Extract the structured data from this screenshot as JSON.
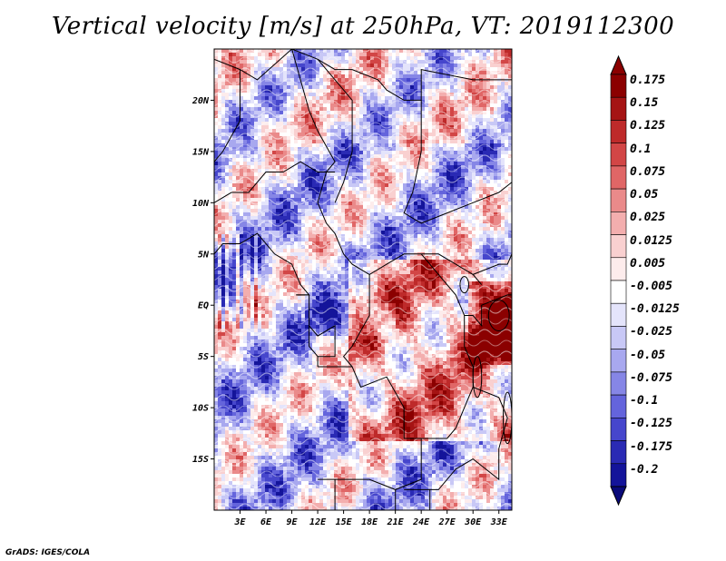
{
  "title": "Vertical velocity [m/s] at 250hPa, VT: 2019112300",
  "credit": "GrADS: IGES/COLA",
  "map": {
    "lon_range": [
      0,
      34.5
    ],
    "lat_range": [
      -20,
      25
    ],
    "lat_ticks": [
      {
        "value": 20,
        "label": "20N"
      },
      {
        "value": 15,
        "label": "15N"
      },
      {
        "value": 10,
        "label": "10N"
      },
      {
        "value": 5,
        "label": "5N"
      },
      {
        "value": 0,
        "label": "EQ"
      },
      {
        "value": -5,
        "label": "5S"
      },
      {
        "value": -10,
        "label": "10S"
      },
      {
        "value": -15,
        "label": "15S"
      }
    ],
    "lon_ticks": [
      {
        "value": 3,
        "label": "3E"
      },
      {
        "value": 6,
        "label": "6E"
      },
      {
        "value": 9,
        "label": "9E"
      },
      {
        "value": 12,
        "label": "12E"
      },
      {
        "value": 15,
        "label": "15E"
      },
      {
        "value": 18,
        "label": "18E"
      },
      {
        "value": 21,
        "label": "21E"
      },
      {
        "value": 24,
        "label": "24E"
      },
      {
        "value": 27,
        "label": "27E"
      },
      {
        "value": 30,
        "label": "30E"
      },
      {
        "value": 33,
        "label": "33E"
      }
    ]
  },
  "colorbar": {
    "levels": [
      {
        "label": "0.175",
        "color": "#8b0000"
      },
      {
        "label": "0.15",
        "color": "#a51414"
      },
      {
        "label": "0.125",
        "color": "#be2a2a"
      },
      {
        "label": "0.1",
        "color": "#d24646"
      },
      {
        "label": "0.075",
        "color": "#e06666"
      },
      {
        "label": "0.05",
        "color": "#ea8a8a"
      },
      {
        "label": "0.025",
        "color": "#f3aeae"
      },
      {
        "label": "0.0125",
        "color": "#f9d0d0"
      },
      {
        "label": "0.005",
        "color": "#fdecec"
      },
      {
        "label": "-0.005",
        "color": "#ffffff"
      },
      {
        "label": "-0.0125",
        "color": "#e4e4fb"
      },
      {
        "label": "-0.025",
        "color": "#c8c8f6"
      },
      {
        "label": "-0.05",
        "color": "#a8a8ef"
      },
      {
        "label": "-0.075",
        "color": "#8686e6"
      },
      {
        "label": "-0.1",
        "color": "#6464dc"
      },
      {
        "label": "-0.125",
        "color": "#4646cc"
      },
      {
        "label": "-0.175",
        "color": "#2a2ab4"
      },
      {
        "label": "-0.2",
        "color": "#14149a"
      }
    ],
    "top_arrow_color": "#8b0000",
    "bottom_arrow_color": "#0a0a7a"
  }
}
